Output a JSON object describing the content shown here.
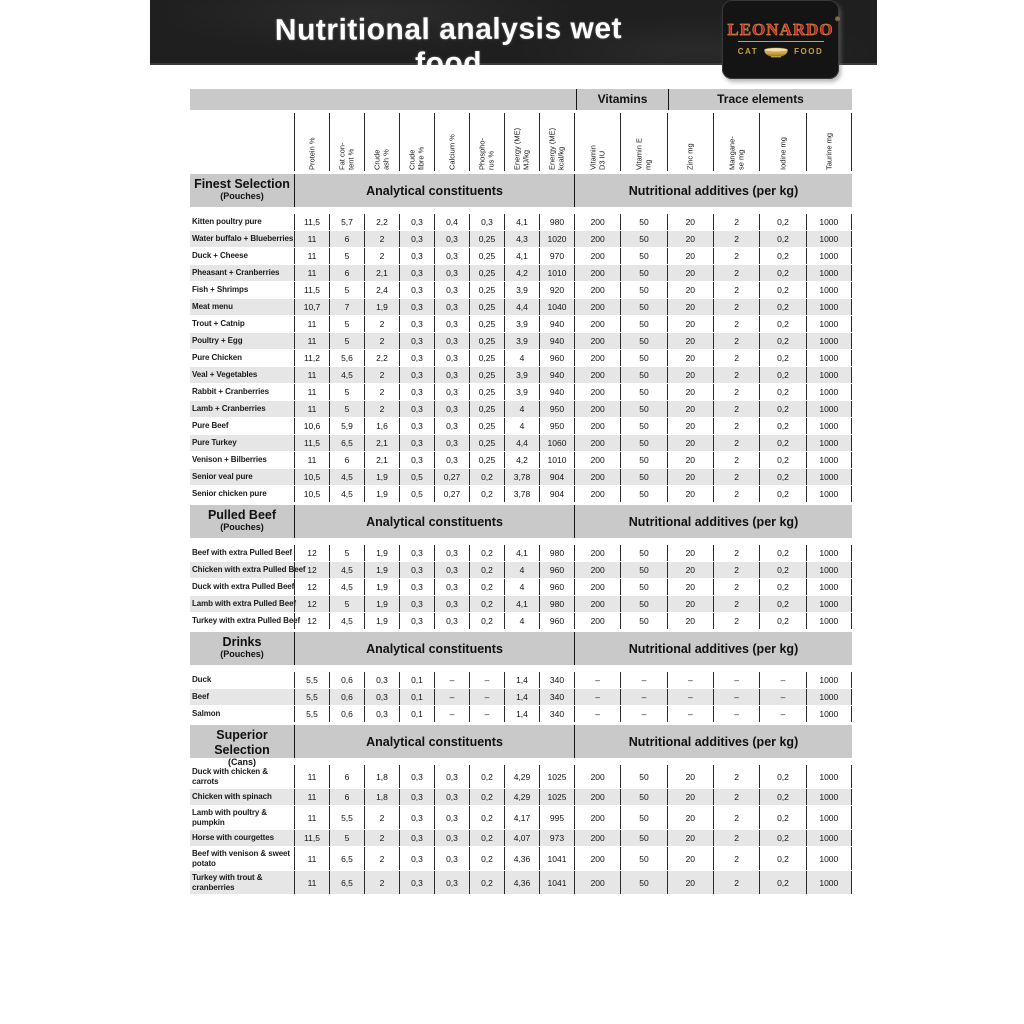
{
  "page": {
    "title": "Nutritional analysis wet food"
  },
  "logo": {
    "brand": "LEONARDO",
    "registered": "®",
    "sub_left": "CAT",
    "sub_right": "FOOD",
    "colors": {
      "red": "#c8202a",
      "gold": "#c9a03c",
      "black": "#141414"
    }
  },
  "table": {
    "group_headers": {
      "vitamins": "Vitamins",
      "trace_elements": "Trace elements"
    },
    "section_columns": {
      "analytical": "Analytical constituents",
      "additives": "Nutritional additives (per kg)"
    },
    "columns": [
      {
        "label": "Protein %",
        "group": "analytical"
      },
      {
        "label": "Fat con-\ntent %",
        "group": "analytical"
      },
      {
        "label": "Crude\nash %",
        "group": "analytical"
      },
      {
        "label": "Crude\nfibre %",
        "group": "analytical"
      },
      {
        "label": "Calcium %",
        "group": "analytical"
      },
      {
        "label": "Phospho-\nrus %",
        "group": "analytical"
      },
      {
        "label": "Energy (ME)\nMJ/kg",
        "group": "analytical"
      },
      {
        "label": "Energy (ME)\nkcal/kg",
        "group": "analytical"
      },
      {
        "label": "Vitamin\nD3 IU",
        "group": "additives"
      },
      {
        "label": "Vitamin E\nmg",
        "group": "additives"
      },
      {
        "label": "Zinc mg",
        "group": "additives"
      },
      {
        "label": "Mangane-\nse mg",
        "group": "additives"
      },
      {
        "label": "Iodine mg",
        "group": "additives"
      },
      {
        "label": "Taurine mg",
        "group": "additives"
      }
    ],
    "sections": [
      {
        "name": "Finest Selection",
        "sub": "(Pouches)",
        "rows": [
          {
            "label": "Kitten poultry pure",
            "values": [
              "11,5",
              "5,7",
              "2,2",
              "0,3",
              "0,4",
              "0,3",
              "4,1",
              "980",
              "200",
              "50",
              "20",
              "2",
              "0,2",
              "1000"
            ]
          },
          {
            "label": "Water buffalo + Blueberries",
            "values": [
              "11",
              "6",
              "2",
              "0,3",
              "0,3",
              "0,25",
              "4,3",
              "1020",
              "200",
              "50",
              "20",
              "2",
              "0,2",
              "1000"
            ]
          },
          {
            "label": "Duck + Cheese",
            "values": [
              "11",
              "5",
              "2",
              "0,3",
              "0,3",
              "0,25",
              "4,1",
              "970",
              "200",
              "50",
              "20",
              "2",
              "0,2",
              "1000"
            ]
          },
          {
            "label": "Pheasant + Cranberries",
            "values": [
              "11",
              "6",
              "2,1",
              "0,3",
              "0,3",
              "0,25",
              "4,2",
              "1010",
              "200",
              "50",
              "20",
              "2",
              "0,2",
              "1000"
            ]
          },
          {
            "label": "Fish + Shrimps",
            "values": [
              "11,5",
              "5",
              "2,4",
              "0,3",
              "0,3",
              "0,25",
              "3,9",
              "920",
              "200",
              "50",
              "20",
              "2",
              "0,2",
              "1000"
            ]
          },
          {
            "label": "Meat menu",
            "values": [
              "10,7",
              "7",
              "1,9",
              "0,3",
              "0,3",
              "0,25",
              "4,4",
              "1040",
              "200",
              "50",
              "20",
              "2",
              "0,2",
              "1000"
            ]
          },
          {
            "label": "Trout + Catnip",
            "values": [
              "11",
              "5",
              "2",
              "0,3",
              "0,3",
              "0,25",
              "3,9",
              "940",
              "200",
              "50",
              "20",
              "2",
              "0,2",
              "1000"
            ]
          },
          {
            "label": "Poultry + Egg",
            "values": [
              "11",
              "5",
              "2",
              "0,3",
              "0,3",
              "0,25",
              "3,9",
              "940",
              "200",
              "50",
              "20",
              "2",
              "0,2",
              "1000"
            ]
          },
          {
            "label": "Pure Chicken",
            "values": [
              "11,2",
              "5,6",
              "2,2",
              "0,3",
              "0,3",
              "0,25",
              "4",
              "960",
              "200",
              "50",
              "20",
              "2",
              "0,2",
              "1000"
            ]
          },
          {
            "label": "Veal + Vegetables",
            "values": [
              "11",
              "4,5",
              "2",
              "0,3",
              "0,3",
              "0,25",
              "3,9",
              "940",
              "200",
              "50",
              "20",
              "2",
              "0,2",
              "1000"
            ]
          },
          {
            "label": "Rabbit + Cranberries",
            "values": [
              "11",
              "5",
              "2",
              "0,3",
              "0,3",
              "0,25",
              "3,9",
              "940",
              "200",
              "50",
              "20",
              "2",
              "0,2",
              "1000"
            ]
          },
          {
            "label": "Lamb + Cranberries",
            "values": [
              "11",
              "5",
              "2",
              "0,3",
              "0,3",
              "0,25",
              "4",
              "950",
              "200",
              "50",
              "20",
              "2",
              "0,2",
              "1000"
            ]
          },
          {
            "label": "Pure Beef",
            "values": [
              "10,6",
              "5,9",
              "1,6",
              "0,3",
              "0,3",
              "0,25",
              "4",
              "950",
              "200",
              "50",
              "20",
              "2",
              "0,2",
              "1000"
            ]
          },
          {
            "label": "Pure Turkey",
            "values": [
              "11,5",
              "6,5",
              "2,1",
              "0,3",
              "0,3",
              "0,25",
              "4,4",
              "1060",
              "200",
              "50",
              "20",
              "2",
              "0,2",
              "1000"
            ]
          },
          {
            "label": "Venison + Bilberries",
            "values": [
              "11",
              "6",
              "2,1",
              "0,3",
              "0,3",
              "0,25",
              "4,2",
              "1010",
              "200",
              "50",
              "20",
              "2",
              "0,2",
              "1000"
            ]
          },
          {
            "label": "Senior veal pure",
            "values": [
              "10,5",
              "4,5",
              "1,9",
              "0,5",
              "0,27",
              "0,2",
              "3,78",
              "904",
              "200",
              "50",
              "20",
              "2",
              "0,2",
              "1000"
            ]
          },
          {
            "label": "Senior chicken pure",
            "values": [
              "10,5",
              "4,5",
              "1,9",
              "0,5",
              "0,27",
              "0,2",
              "3,78",
              "904",
              "200",
              "50",
              "20",
              "2",
              "0,2",
              "1000"
            ]
          }
        ]
      },
      {
        "name": "Pulled Beef",
        "sub": "(Pouches)",
        "rows": [
          {
            "label": "Beef with extra Pulled Beef",
            "values": [
              "12",
              "5",
              "1,9",
              "0,3",
              "0,3",
              "0,2",
              "4,1",
              "980",
              "200",
              "50",
              "20",
              "2",
              "0,2",
              "1000"
            ]
          },
          {
            "label": "Chicken with extra Pulled Beef",
            "values": [
              "12",
              "4,5",
              "1,9",
              "0,3",
              "0,3",
              "0,2",
              "4",
              "960",
              "200",
              "50",
              "20",
              "2",
              "0,2",
              "1000"
            ]
          },
          {
            "label": "Duck with extra Pulled Beef",
            "values": [
              "12",
              "4,5",
              "1,9",
              "0,3",
              "0,3",
              "0,2",
              "4",
              "960",
              "200",
              "50",
              "20",
              "2",
              "0,2",
              "1000"
            ]
          },
          {
            "label": "Lamb with extra Pulled Beef",
            "values": [
              "12",
              "5",
              "1,9",
              "0,3",
              "0,3",
              "0,2",
              "4,1",
              "980",
              "200",
              "50",
              "20",
              "2",
              "0,2",
              "1000"
            ]
          },
          {
            "label": "Turkey with extra Pulled Beef",
            "values": [
              "12",
              "4,5",
              "1,9",
              "0,3",
              "0,3",
              "0,2",
              "4",
              "960",
              "200",
              "50",
              "20",
              "2",
              "0,2",
              "1000"
            ]
          }
        ]
      },
      {
        "name": "Drinks",
        "sub": "(Pouches)",
        "rows": [
          {
            "label": "Duck",
            "values": [
              "5,5",
              "0,6",
              "0,3",
              "0,1",
              "–",
              "–",
              "1,4",
              "340",
              "–",
              "–",
              "–",
              "–",
              "–",
              "1000"
            ]
          },
          {
            "label": "Beef",
            "values": [
              "5,5",
              "0,6",
              "0,3",
              "0,1",
              "–",
              "–",
              "1,4",
              "340",
              "–",
              "–",
              "–",
              "–",
              "–",
              "1000"
            ]
          },
          {
            "label": "Salmon",
            "values": [
              "5,5",
              "0,6",
              "0,3",
              "0,1",
              "–",
              "–",
              "1,4",
              "340",
              "–",
              "–",
              "–",
              "–",
              "–",
              "1000"
            ]
          }
        ]
      },
      {
        "name": "Superior Selection",
        "sub": "(Cans)",
        "rows": [
          {
            "label": "Duck with chicken &\ncarrots",
            "values": [
              "11",
              "6",
              "1,8",
              "0,3",
              "0,3",
              "0,2",
              "4,29",
              "1025",
              "200",
              "50",
              "20",
              "2",
              "0,2",
              "1000"
            ]
          },
          {
            "label": "Chicken with spinach",
            "values": [
              "11",
              "6",
              "1,8",
              "0,3",
              "0,3",
              "0,2",
              "4,29",
              "1025",
              "200",
              "50",
              "20",
              "2",
              "0,2",
              "1000"
            ]
          },
          {
            "label": "Lamb with poultry &\npumpkin",
            "values": [
              "11",
              "5,5",
              "2",
              "0,3",
              "0,3",
              "0,2",
              "4,17",
              "995",
              "200",
              "50",
              "20",
              "2",
              "0,2",
              "1000"
            ]
          },
          {
            "label": "Horse with courgettes",
            "values": [
              "11,5",
              "5",
              "2",
              "0,3",
              "0,3",
              "0,2",
              "4,07",
              "973",
              "200",
              "50",
              "20",
              "2",
              "0,2",
              "1000"
            ]
          },
          {
            "label": "Beef with venison & sweet\npotato",
            "values": [
              "11",
              "6,5",
              "2",
              "0,3",
              "0,3",
              "0,2",
              "4,36",
              "1041",
              "200",
              "50",
              "20",
              "2",
              "0,2",
              "1000"
            ]
          },
          {
            "label": "Turkey with trout &\ncranberries",
            "values": [
              "11",
              "6,5",
              "2",
              "0,3",
              "0,3",
              "0,2",
              "4,36",
              "1041",
              "200",
              "50",
              "20",
              "2",
              "0,2",
              "1000"
            ]
          }
        ]
      }
    ]
  }
}
